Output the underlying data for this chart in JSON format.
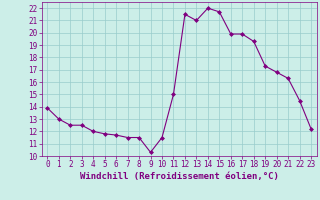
{
  "x": [
    0,
    1,
    2,
    3,
    4,
    5,
    6,
    7,
    8,
    9,
    10,
    11,
    12,
    13,
    14,
    15,
    16,
    17,
    18,
    19,
    20,
    21,
    22,
    23
  ],
  "y": [
    13.9,
    13.0,
    12.5,
    12.5,
    12.0,
    11.8,
    11.7,
    11.5,
    11.5,
    10.3,
    11.5,
    15.0,
    21.5,
    21.0,
    22.0,
    21.7,
    19.9,
    19.9,
    19.3,
    17.3,
    16.8,
    16.3,
    14.5,
    12.2
  ],
  "line_color": "#800080",
  "marker": "D",
  "marker_size": 2.0,
  "bg_color": "#cceee8",
  "grid_color": "#99cccc",
  "xlabel": "Windchill (Refroidissement éolien,°C)",
  "xlabel_fontsize": 6.5,
  "ylim": [
    10,
    22.5
  ],
  "yticks": [
    10,
    11,
    12,
    13,
    14,
    15,
    16,
    17,
    18,
    19,
    20,
    21,
    22
  ],
  "xticks": [
    0,
    1,
    2,
    3,
    4,
    5,
    6,
    7,
    8,
    9,
    10,
    11,
    12,
    13,
    14,
    15,
    16,
    17,
    18,
    19,
    20,
    21,
    22,
    23
  ],
  "tick_fontsize": 5.5,
  "line_width": 0.8,
  "text_color": "#800080"
}
